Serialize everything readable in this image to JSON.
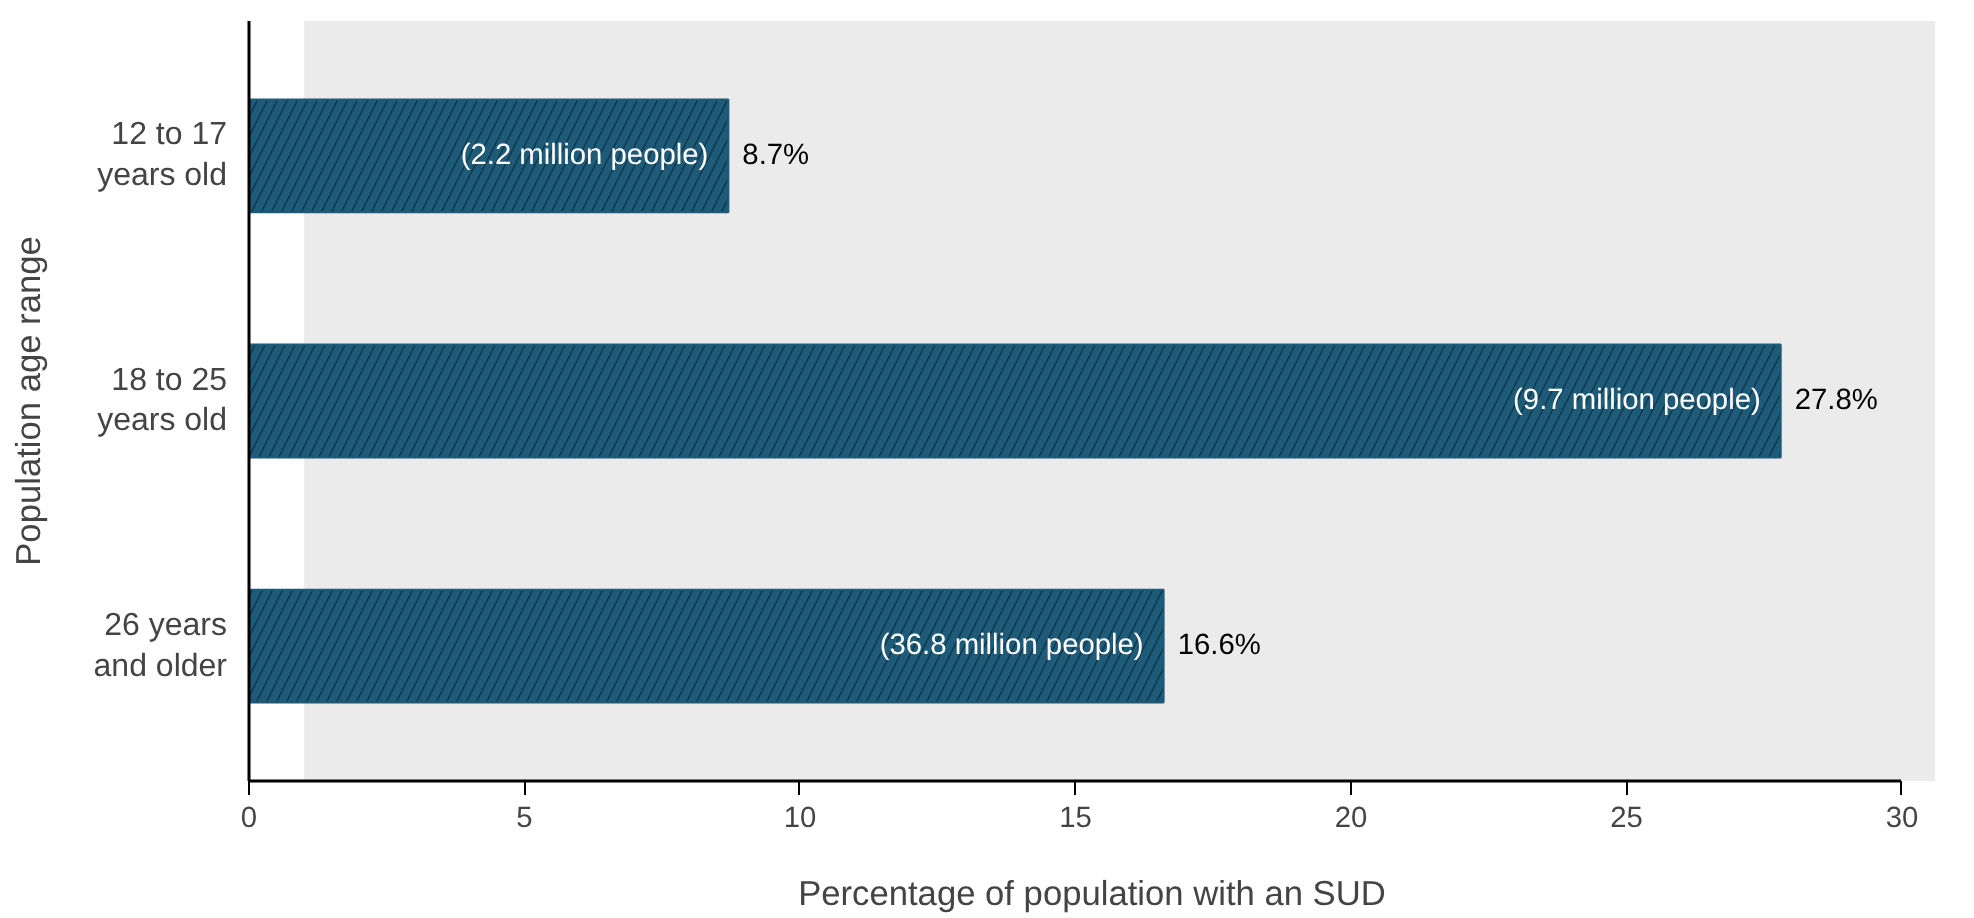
{
  "chart_data": {
    "type": "bar",
    "orientation": "horizontal",
    "categories": [
      "12 to 17\nyears old",
      "18 to 25\nyears old",
      "26 years\nand older"
    ],
    "values": [
      8.7,
      27.8,
      16.6
    ],
    "color": "#1e5b78",
    "value_labels": [
      "8.7%",
      "27.8%",
      "16.6%"
    ],
    "annotations": [
      {
        "text": "(2.2 million people)",
        "x": 8.7,
        "y": "12 to 17\nyears old"
      },
      {
        "text": "(9.7 million people)",
        "x": 27.8,
        "y": "18 to 25\nyears old"
      },
      {
        "text": "(36.8 million people)",
        "x": 16.6,
        "y": "26 years\nand older"
      }
    ],
    "xlim": [
      0,
      30.6
    ],
    "xticks": [
      0,
      5,
      10,
      15,
      20,
      25,
      30
    ],
    "xlabel": "Percentage of population with an SUD",
    "ylabel": "Population age range",
    "bands": [
      {
        "axis": "x",
        "from": 1,
        "to": 30.6,
        "color": "#ebebeb"
      }
    ]
  }
}
